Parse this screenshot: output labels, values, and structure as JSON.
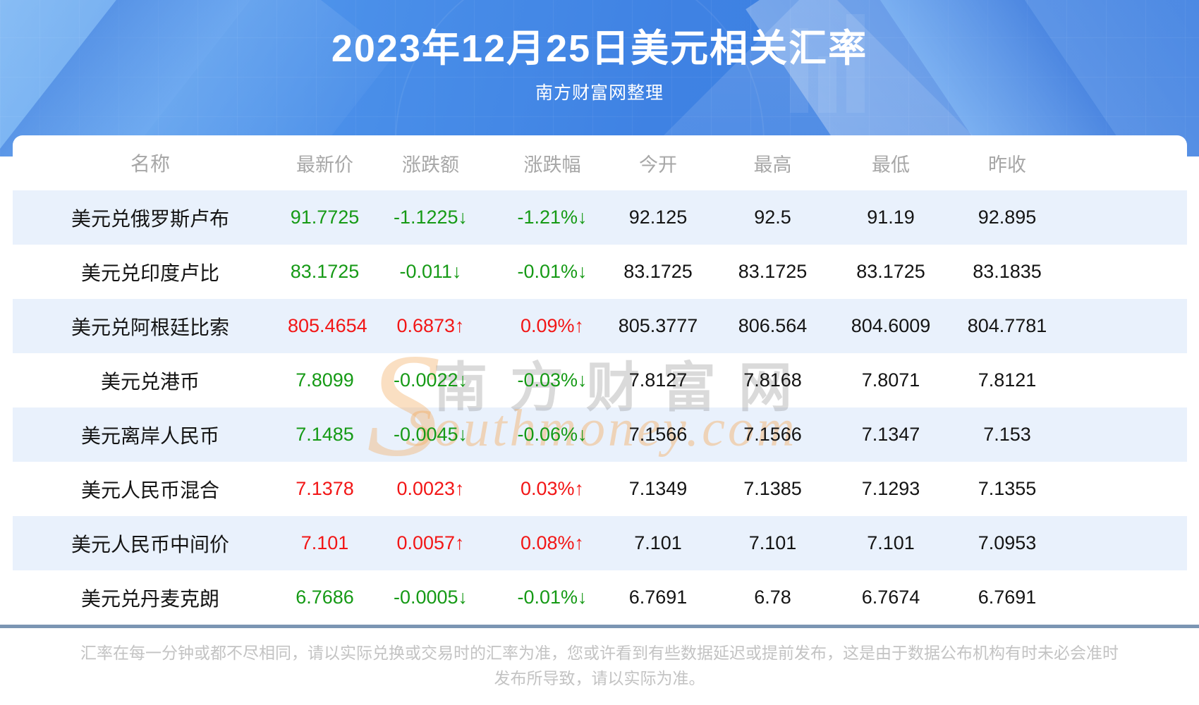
{
  "banner": {
    "title": "2023年12月25日美元相关汇率",
    "subtitle": "南方财富网整理"
  },
  "watermark": {
    "logo_letter": "S",
    "cn": "南方财富网",
    "en": "Southmoney.com"
  },
  "chart_data": {
    "type": "table",
    "title": "2023年12月25日美元相关汇率",
    "columns": [
      "名称",
      "最新价",
      "涨跌额",
      "涨跌幅",
      "今开",
      "最高",
      "最低",
      "昨收"
    ],
    "rows": [
      {
        "name": "美元兑俄罗斯卢布",
        "latest": "91.7725",
        "change": "-1.1225↓",
        "pct": "-1.21%↓",
        "open": "92.125",
        "high": "92.5",
        "low": "91.19",
        "prev": "92.895",
        "trend": "down"
      },
      {
        "name": "美元兑印度卢比",
        "latest": "83.1725",
        "change": "-0.011↓",
        "pct": "-0.01%↓",
        "open": "83.1725",
        "high": "83.1725",
        "low": "83.1725",
        "prev": "83.1835",
        "trend": "down"
      },
      {
        "name": "美元兑阿根廷比索",
        "latest": "805.4654",
        "change": "0.6873↑",
        "pct": "0.09%↑",
        "open": "805.3777",
        "high": "806.564",
        "low": "804.6009",
        "prev": "804.7781",
        "trend": "up"
      },
      {
        "name": "美元兑港币",
        "latest": "7.8099",
        "change": "-0.0022↓",
        "pct": "-0.03%↓",
        "open": "7.8127",
        "high": "7.8168",
        "low": "7.8071",
        "prev": "7.8121",
        "trend": "down"
      },
      {
        "name": "美元离岸人民币",
        "latest": "7.1485",
        "change": "-0.0045↓",
        "pct": "-0.06%↓",
        "open": "7.1566",
        "high": "7.1566",
        "low": "7.1347",
        "prev": "7.153",
        "trend": "down"
      },
      {
        "name": "美元人民币混合",
        "latest": "7.1378",
        "change": "0.0023↑",
        "pct": "0.03%↑",
        "open": "7.1349",
        "high": "7.1385",
        "low": "7.1293",
        "prev": "7.1355",
        "trend": "up"
      },
      {
        "name": "美元人民币中间价",
        "latest": "7.101",
        "change": "0.0057↑",
        "pct": "0.08%↑",
        "open": "7.101",
        "high": "7.101",
        "low": "7.101",
        "prev": "7.0953",
        "trend": "up"
      },
      {
        "name": "美元兑丹麦克朗",
        "latest": "6.7686",
        "change": "-0.0005↓",
        "pct": "-0.01%↓",
        "open": "6.7691",
        "high": "6.78",
        "low": "6.7674",
        "prev": "6.7691",
        "trend": "down"
      }
    ]
  },
  "footer": {
    "disclaimer": "汇率在每一分钟或都不尽相同，请以实际兑换或交易时的汇率为准，您或许看到有些数据延迟或提前发布，这是由于数据公布机构有时未必会准时发布所导致，请以实际为准。"
  },
  "colors": {
    "banner_blue": "#3f82e3",
    "stripe": "#e9f1fc",
    "up_red": "#f21616",
    "down_green": "#169a16",
    "header_gray": "#a7a7a7",
    "divider": "#7b95b3",
    "disclaimer_gray": "#c3c3c3"
  }
}
